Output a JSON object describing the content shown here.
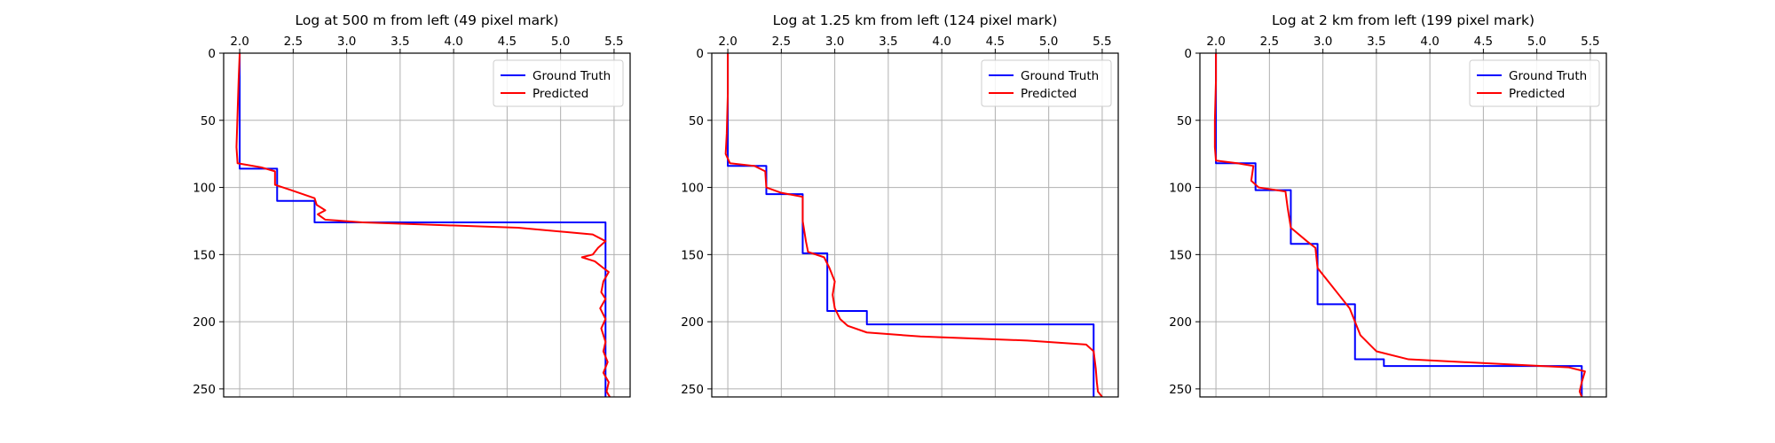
{
  "figure": {
    "background": "#ffffff",
    "grid_color": "#b0b0b0",
    "axis_color": "#000000"
  },
  "chart_data": [
    {
      "type": "line",
      "title": "Log at 500 m from left (49 pixel mark)",
      "xlabel": "",
      "ylabel": "",
      "xlim": [
        1.85,
        5.65
      ],
      "ylim": [
        256,
        0
      ],
      "x_ticks": [
        2.0,
        2.5,
        3.0,
        3.5,
        4.0,
        4.5,
        5.0,
        5.5
      ],
      "x_tick_labels": [
        "2.0",
        "2.5",
        "3.0",
        "3.5",
        "4.0",
        "4.5",
        "5.0",
        "5.5"
      ],
      "x_axis_position": "top",
      "y_ticks": [
        0,
        50,
        100,
        150,
        200,
        250
      ],
      "y_tick_labels": [
        "0",
        "50",
        "100",
        "150",
        "200",
        "250"
      ],
      "grid": true,
      "legend_position": "top-right",
      "series": [
        {
          "name": "Ground Truth",
          "color": "#0000ff",
          "points": [
            [
              2.0,
              0
            ],
            [
              2.0,
              86
            ],
            [
              2.35,
              86
            ],
            [
              2.35,
              110
            ],
            [
              2.7,
              110
            ],
            [
              2.7,
              126
            ],
            [
              5.42,
              126
            ],
            [
              5.42,
              256
            ]
          ]
        },
        {
          "name": "Predicted",
          "color": "#ff0000",
          "points": [
            [
              2.0,
              0
            ],
            [
              1.99,
              20
            ],
            [
              1.98,
              45
            ],
            [
              1.97,
              70
            ],
            [
              1.98,
              82
            ],
            [
              2.2,
              85
            ],
            [
              2.33,
              88
            ],
            [
              2.33,
              98
            ],
            [
              2.48,
              102
            ],
            [
              2.7,
              108
            ],
            [
              2.72,
              113
            ],
            [
              2.8,
              117
            ],
            [
              2.73,
              120
            ],
            [
              2.8,
              124
            ],
            [
              3.15,
              126
            ],
            [
              4.6,
              130
            ],
            [
              5.3,
              135
            ],
            [
              5.42,
              140
            ],
            [
              5.35,
              145
            ],
            [
              5.3,
              150
            ],
            [
              5.2,
              152
            ],
            [
              5.32,
              155
            ],
            [
              5.4,
              160
            ],
            [
              5.45,
              163
            ],
            [
              5.4,
              170
            ],
            [
              5.38,
              178
            ],
            [
              5.42,
              183
            ],
            [
              5.37,
              190
            ],
            [
              5.42,
              198
            ],
            [
              5.38,
              205
            ],
            [
              5.42,
              215
            ],
            [
              5.4,
              222
            ],
            [
              5.44,
              230
            ],
            [
              5.4,
              238
            ],
            [
              5.45,
              245
            ],
            [
              5.43,
              252
            ],
            [
              5.46,
              256
            ]
          ]
        }
      ]
    },
    {
      "type": "line",
      "title": "Log at 1.25 km from left (124 pixel mark)",
      "xlabel": "",
      "ylabel": "",
      "xlim": [
        1.85,
        5.65
      ],
      "ylim": [
        256,
        0
      ],
      "x_ticks": [
        2.0,
        2.5,
        3.0,
        3.5,
        4.0,
        4.5,
        5.0,
        5.5
      ],
      "x_tick_labels": [
        "2.0",
        "2.5",
        "3.0",
        "3.5",
        "4.0",
        "4.5",
        "5.0",
        "5.5"
      ],
      "x_axis_position": "top",
      "y_ticks": [
        0,
        50,
        100,
        150,
        200,
        250
      ],
      "y_tick_labels": [
        "0",
        "50",
        "100",
        "150",
        "200",
        "250"
      ],
      "grid": true,
      "legend_position": "top-right",
      "series": [
        {
          "name": "Ground Truth",
          "color": "#0000ff",
          "points": [
            [
              2.0,
              0
            ],
            [
              2.0,
              84
            ],
            [
              2.36,
              84
            ],
            [
              2.36,
              105
            ],
            [
              2.7,
              105
            ],
            [
              2.7,
              149
            ],
            [
              2.93,
              149
            ],
            [
              2.93,
              192
            ],
            [
              3.3,
              192
            ],
            [
              3.3,
              202
            ],
            [
              5.42,
              202
            ],
            [
              5.42,
              256
            ]
          ]
        },
        {
          "name": "Predicted",
          "color": "#ff0000",
          "points": [
            [
              2.0,
              0
            ],
            [
              2.0,
              30
            ],
            [
              1.99,
              60
            ],
            [
              1.98,
              75
            ],
            [
              2.02,
              82
            ],
            [
              2.25,
              84
            ],
            [
              2.35,
              88
            ],
            [
              2.36,
              100
            ],
            [
              2.5,
              104
            ],
            [
              2.7,
              107
            ],
            [
              2.7,
              125
            ],
            [
              2.73,
              140
            ],
            [
              2.75,
              148
            ],
            [
              2.9,
              152
            ],
            [
              2.95,
              160
            ],
            [
              3.0,
              170
            ],
            [
              2.98,
              180
            ],
            [
              3.0,
              190
            ],
            [
              3.05,
              198
            ],
            [
              3.12,
              203
            ],
            [
              3.3,
              208
            ],
            [
              3.8,
              211
            ],
            [
              4.8,
              214
            ],
            [
              5.35,
              217
            ],
            [
              5.42,
              222
            ],
            [
              5.44,
              235
            ],
            [
              5.45,
              245
            ],
            [
              5.46,
              252
            ],
            [
              5.5,
              256
            ]
          ]
        }
      ]
    },
    {
      "type": "line",
      "title": "Log at 2 km from left (199 pixel mark)",
      "xlabel": "",
      "ylabel": "",
      "xlim": [
        1.85,
        5.65
      ],
      "ylim": [
        256,
        0
      ],
      "x_ticks": [
        2.0,
        2.5,
        3.0,
        3.5,
        4.0,
        4.5,
        5.0,
        5.5
      ],
      "x_tick_labels": [
        "2.0",
        "2.5",
        "3.0",
        "3.5",
        "4.0",
        "4.5",
        "5.0",
        "5.5"
      ],
      "x_axis_position": "top",
      "y_ticks": [
        0,
        50,
        100,
        150,
        200,
        250
      ],
      "y_tick_labels": [
        "0",
        "50",
        "100",
        "150",
        "200",
        "250"
      ],
      "grid": true,
      "legend_position": "top-right",
      "series": [
        {
          "name": "Ground Truth",
          "color": "#0000ff",
          "points": [
            [
              2.0,
              0
            ],
            [
              2.0,
              82
            ],
            [
              2.37,
              82
            ],
            [
              2.37,
              102
            ],
            [
              2.7,
              102
            ],
            [
              2.7,
              142
            ],
            [
              2.95,
              142
            ],
            [
              2.95,
              187
            ],
            [
              3.3,
              187
            ],
            [
              3.3,
              228
            ],
            [
              3.57,
              228
            ],
            [
              3.57,
              233
            ],
            [
              5.42,
              233
            ],
            [
              5.42,
              256
            ]
          ]
        },
        {
          "name": "Predicted",
          "color": "#ff0000",
          "points": [
            [
              2.0,
              0
            ],
            [
              2.0,
              20
            ],
            [
              1.99,
              50
            ],
            [
              1.99,
              70
            ],
            [
              2.0,
              80
            ],
            [
              2.2,
              82
            ],
            [
              2.35,
              84
            ],
            [
              2.33,
              95
            ],
            [
              2.4,
              100
            ],
            [
              2.65,
              103
            ],
            [
              2.67,
              115
            ],
            [
              2.7,
              130
            ],
            [
              2.85,
              140
            ],
            [
              2.93,
              145
            ],
            [
              2.95,
              160
            ],
            [
              3.05,
              170
            ],
            [
              3.15,
              180
            ],
            [
              3.25,
              190
            ],
            [
              3.3,
              200
            ],
            [
              3.35,
              210
            ],
            [
              3.45,
              218
            ],
            [
              3.5,
              222
            ],
            [
              3.8,
              228
            ],
            [
              4.8,
              232
            ],
            [
              5.3,
              234
            ],
            [
              5.45,
              237
            ],
            [
              5.42,
              245
            ],
            [
              5.4,
              252
            ],
            [
              5.42,
              256
            ]
          ]
        }
      ]
    }
  ]
}
